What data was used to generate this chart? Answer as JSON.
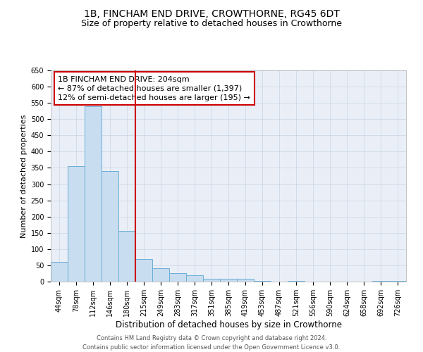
{
  "title": "1B, FINCHAM END DRIVE, CROWTHORNE, RG45 6DT",
  "subtitle": "Size of property relative to detached houses in Crowthorne",
  "xlabel": "Distribution of detached houses by size in Crowthorne",
  "ylabel": "Number of detached properties",
  "bin_labels": [
    "44sqm",
    "78sqm",
    "112sqm",
    "146sqm",
    "180sqm",
    "215sqm",
    "249sqm",
    "283sqm",
    "317sqm",
    "351sqm",
    "385sqm",
    "419sqm",
    "453sqm",
    "487sqm",
    "521sqm",
    "556sqm",
    "590sqm",
    "624sqm",
    "658sqm",
    "692sqm",
    "726sqm"
  ],
  "bar_heights": [
    60,
    355,
    540,
    340,
    157,
    70,
    42,
    25,
    20,
    8,
    8,
    8,
    2,
    0,
    2,
    0,
    0,
    0,
    0,
    2,
    2
  ],
  "bar_color": "#c9ddf0",
  "bar_edge_color": "#6aaed6",
  "vline_color": "#cc0000",
  "vline_x_index": 5,
  "annotation_box_text": "1B FINCHAM END DRIVE: 204sqm\n← 87% of detached houses are smaller (1,397)\n12% of semi-detached houses are larger (195) →",
  "annotation_box_edge_color": "#cc0000",
  "ylim": [
    0,
    650
  ],
  "yticks": [
    0,
    50,
    100,
    150,
    200,
    250,
    300,
    350,
    400,
    450,
    500,
    550,
    600,
    650
  ],
  "grid_color": "#c8d4e4",
  "bg_color": "#eaeff7",
  "footer_text": "Contains HM Land Registry data © Crown copyright and database right 2024.\nContains public sector information licensed under the Open Government Licence v3.0.",
  "title_fontsize": 10,
  "subtitle_fontsize": 9,
  "xlabel_fontsize": 8.5,
  "ylabel_fontsize": 8,
  "tick_fontsize": 7,
  "annotation_fontsize": 8,
  "footer_fontsize": 6
}
